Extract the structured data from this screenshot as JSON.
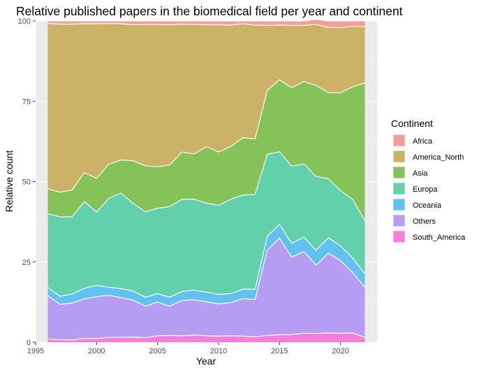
{
  "chart_data": {
    "type": "area",
    "title": "Relative published papers in the biomedical field per year and continent",
    "xlabel": "Year",
    "ylabel": "Relative count",
    "xlim": [
      1995,
      2023
    ],
    "ylim": [
      0,
      100
    ],
    "x_ticks": [
      "1995",
      "2000",
      "2005",
      "2010",
      "2015",
      "2020"
    ],
    "y_ticks": [
      "0",
      "25",
      "50",
      "75",
      "100"
    ],
    "grid": true,
    "legend_position": "right",
    "legend_title": "Continent",
    "x": [
      1996,
      1997,
      1998,
      1999,
      2000,
      2001,
      2002,
      2003,
      2004,
      2005,
      2006,
      2007,
      2008,
      2009,
      2010,
      2011,
      2012,
      2013,
      2014,
      2015,
      2016,
      2017,
      2018,
      2019,
      2020,
      2021,
      2022
    ],
    "series": [
      {
        "name": "South_America",
        "color": "#F27FD9",
        "values": [
          1.0,
          0.8,
          0.7,
          1.2,
          1.1,
          1.5,
          1.5,
          1.6,
          1.4,
          2.0,
          2.1,
          2.0,
          2.2,
          2.0,
          1.9,
          2.0,
          1.9,
          1.7,
          2.1,
          2.3,
          2.4,
          2.8,
          2.7,
          2.9,
          2.8,
          2.9,
          1.5
        ]
      },
      {
        "name": "Others",
        "color": "#B79CF4",
        "values": [
          13.5,
          11.0,
          11.5,
          12.3,
          13.1,
          13.1,
          12.4,
          11.5,
          9.8,
          10.5,
          9.1,
          11.0,
          11.0,
          10.6,
          10.0,
          10.3,
          11.7,
          11.6,
          26.6,
          30.1,
          24.1,
          25.4,
          21.3,
          24.8,
          22.6,
          18.8,
          15.6
        ]
      },
      {
        "name": "Oceania",
        "color": "#61C2EF",
        "values": [
          2.5,
          2.5,
          2.8,
          3.3,
          3.5,
          2.5,
          2.8,
          2.8,
          2.8,
          2.6,
          2.8,
          2.8,
          3.0,
          3.0,
          3.0,
          2.8,
          2.9,
          3.2,
          4.3,
          4.3,
          4.3,
          4.5,
          4.6,
          4.8,
          4.6,
          4.5,
          4.2
        ]
      },
      {
        "name": "Europa",
        "color": "#62D1AB",
        "values": [
          23.0,
          24.7,
          24.1,
          27.0,
          22.8,
          27.7,
          29.7,
          27.3,
          26.6,
          26.6,
          28.2,
          28.7,
          28.3,
          27.7,
          27.7,
          29.4,
          29.3,
          29.5,
          25.5,
          22.6,
          24.0,
          22.8,
          23.0,
          18.4,
          17.2,
          18.3,
          16.5
        ]
      },
      {
        "name": "Asia",
        "color": "#85C257",
        "values": [
          7.7,
          7.7,
          8.3,
          9.0,
          10.5,
          10.6,
          10.3,
          13.3,
          14.3,
          12.9,
          13.0,
          14.7,
          14.1,
          17.6,
          16.6,
          16.4,
          17.8,
          17.3,
          19.9,
          22.4,
          24.4,
          25.6,
          28.3,
          26.8,
          30.5,
          35.0,
          42.9
        ]
      },
      {
        "name": "America_North",
        "color": "#CCB266",
        "values": [
          51.5,
          52.3,
          51.6,
          46.3,
          48.1,
          43.8,
          42.4,
          42.3,
          44.0,
          44.3,
          43.6,
          39.8,
          40.3,
          37.9,
          39.6,
          37.8,
          35.5,
          35.4,
          20.2,
          17.0,
          19.4,
          17.5,
          19.0,
          20.3,
          20.2,
          18.8,
          17.5
        ]
      },
      {
        "name": "Africa",
        "color": "#F39F96",
        "values": [
          0.8,
          1.0,
          1.0,
          0.9,
          0.9,
          0.8,
          0.9,
          1.2,
          1.1,
          1.1,
          1.2,
          1.0,
          1.1,
          1.2,
          1.2,
          1.3,
          0.9,
          1.3,
          1.4,
          1.3,
          1.4,
          1.4,
          1.6,
          2.0,
          2.1,
          1.7,
          1.8
        ]
      }
    ],
    "legend_order": [
      "Africa",
      "America_North",
      "Asia",
      "Europa",
      "Oceania",
      "Others",
      "South_America"
    ]
  }
}
